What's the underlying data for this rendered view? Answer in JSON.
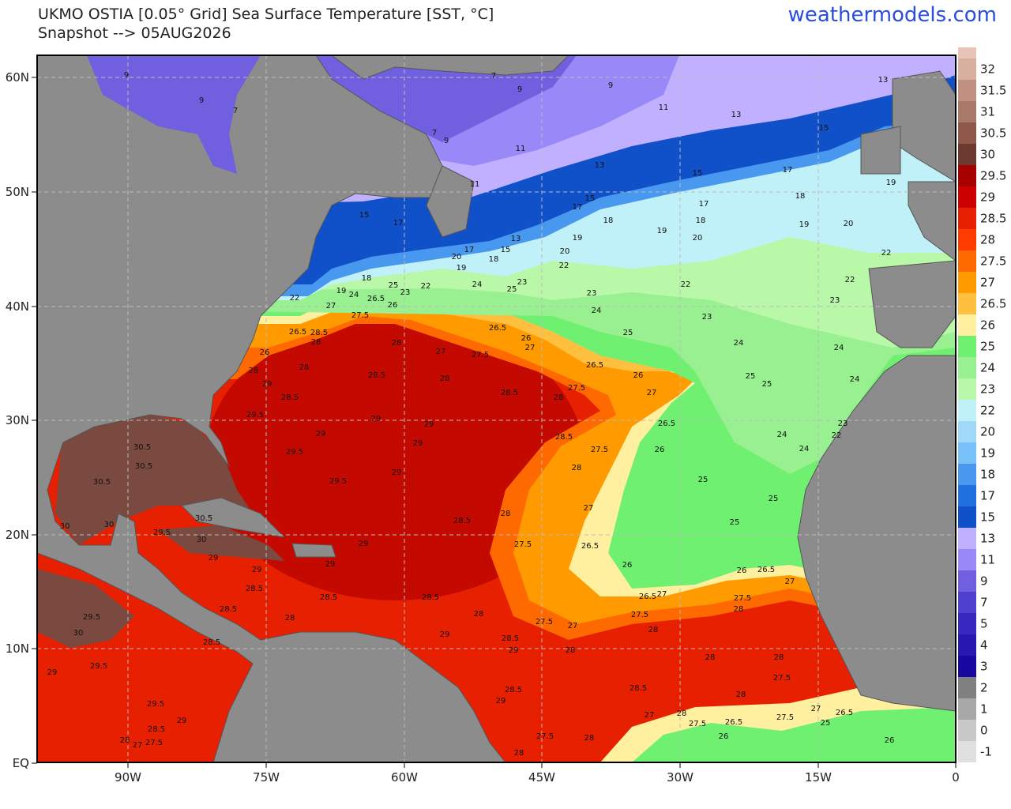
{
  "header": {
    "title": "UKMO OSTIA [0.05° Grid] Sea Surface Temperature [SST, °C]",
    "subtitle": "Snapshot --> 05AUG2026",
    "site": "weathermodels.com"
  },
  "map": {
    "lat_labels": [
      "60N",
      "50N",
      "40N",
      "30N",
      "20N",
      "10N",
      "EQ"
    ],
    "lon_labels": [
      "90W",
      "75W",
      "60W",
      "45W",
      "30W",
      "15W",
      "0"
    ],
    "contour_labels": [
      9,
      9,
      7,
      7,
      9,
      9,
      13,
      11,
      13,
      15,
      7,
      9,
      11,
      13,
      11,
      15,
      17,
      19,
      15,
      17,
      17,
      18,
      18,
      18,
      19,
      20,
      15,
      17,
      19,
      20,
      13,
      19,
      17,
      15,
      20,
      20,
      18,
      19,
      22,
      22,
      18,
      25,
      22,
      24,
      23,
      22,
      22,
      19,
      24,
      23,
      25,
      23,
      22,
      26.5,
      26,
      27,
      27.5,
      23,
      24,
      23,
      26.5,
      28.5,
      28,
      26.5,
      26,
      27,
      25,
      24,
      24,
      26,
      28,
      27,
      27.5,
      28,
      28,
      26.5,
      26,
      28.5,
      28,
      29,
      25,
      25,
      24,
      27.5,
      27,
      28.5,
      28,
      28.5,
      29.5,
      29,
      29,
      26.5,
      23,
      29,
      28.5,
      24,
      22,
      29,
      29.5,
      27.5,
      26,
      24,
      30.5,
      30.5,
      29,
      28,
      29.5,
      30.5,
      25,
      25,
      27,
      30.5,
      28,
      28.5,
      25,
      30,
      30,
      29.5,
      30,
      27.5,
      26.5,
      29,
      29,
      29,
      29,
      26,
      26,
      26.5,
      27,
      28.5,
      27.5,
      26.5,
      27,
      28,
      28.5,
      28.5,
      28.5,
      27.5,
      28,
      28,
      29.5,
      27.5,
      27,
      28,
      30,
      29,
      28.5,
      28.5,
      29,
      28,
      28,
      28,
      29.5,
      29,
      27.5,
      28.5,
      28.5,
      28,
      29.5,
      29,
      27,
      26.5,
      27,
      28,
      27.5,
      26.5,
      27.5,
      25,
      29,
      28.5,
      26,
      27.5,
      28,
      28,
      27.5,
      27,
      26,
      28
    ]
  },
  "colorbar": {
    "ticks": [
      32,
      31.5,
      31,
      30.5,
      30,
      29.5,
      29,
      28.5,
      28,
      27.5,
      27,
      26.5,
      26,
      25,
      24,
      23,
      22,
      20,
      19,
      18,
      17,
      15,
      13,
      11,
      9,
      7,
      5,
      4,
      3,
      2,
      1,
      0,
      -1
    ],
    "colors": [
      "#e8c4b8",
      "#d8b0a0",
      "#c09080",
      "#a87868",
      "#905848",
      "#6a3a30",
      "#a80000",
      "#cc0000",
      "#e62000",
      "#ff3c00",
      "#ff6a00",
      "#ff9a00",
      "#ffc040",
      "#fff0a0",
      "#70f070",
      "#98f090",
      "#b8f8a8",
      "#c0f0f8",
      "#a0d8f8",
      "#78c0f8",
      "#4898f0",
      "#2070e0",
      "#1050c8",
      "#c0b0ff",
      "#9888f8",
      "#7060e0",
      "#5040d0",
      "#3828c0",
      "#2818b0",
      "#1808a0",
      "#808080",
      "#a8a8a8",
      "#c8c8c8",
      "#e0e0e0"
    ]
  }
}
